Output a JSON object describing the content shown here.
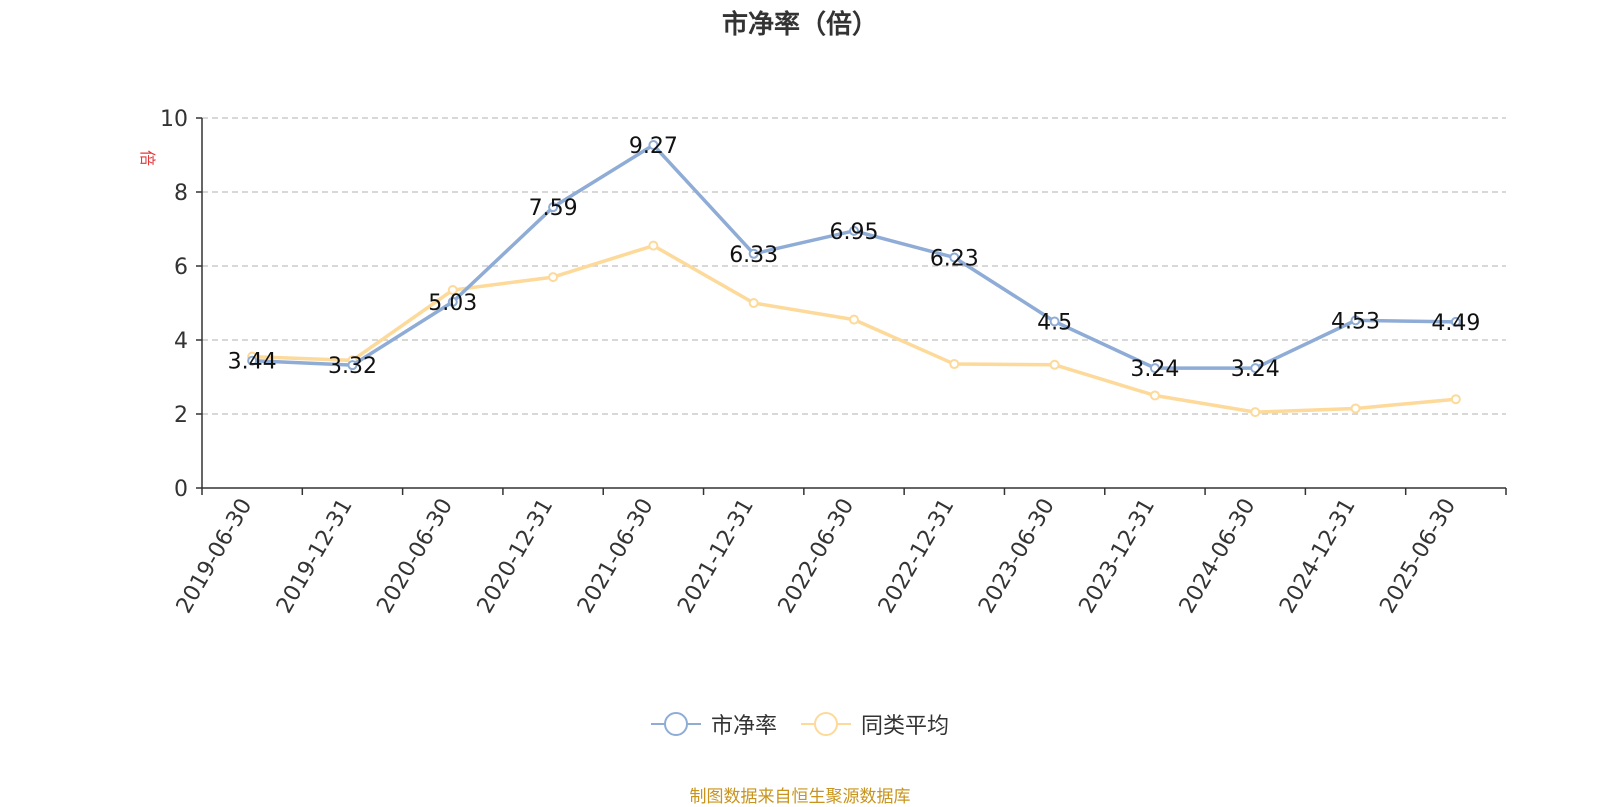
{
  "chart_data": {
    "type": "line",
    "title": "市净率（倍）",
    "ylabel": "倍",
    "ylim": [
      0,
      10
    ],
    "yticks": [
      0,
      2,
      4,
      6,
      8,
      10
    ],
    "grid": true,
    "legend_position": "bottom",
    "categories": [
      "2019-06-30",
      "2019-12-31",
      "2020-06-30",
      "2020-12-31",
      "2021-06-30",
      "2021-12-31",
      "2022-06-30",
      "2022-12-31",
      "2023-06-30",
      "2023-12-31",
      "2024-06-30",
      "2024-12-31",
      "2025-06-30"
    ],
    "series": [
      {
        "name": "市净率",
        "color": "#8eacd6",
        "values": [
          3.44,
          3.32,
          5.03,
          7.59,
          9.27,
          6.33,
          6.95,
          6.23,
          4.5,
          3.24,
          3.24,
          4.53,
          4.49
        ],
        "labels": [
          "3.44",
          "3.32",
          "5.03",
          "7.59",
          "9.27",
          "6.33",
          "6.95",
          "6.23",
          "4.5",
          "3.24",
          "3.24",
          "4.53",
          "4.49"
        ]
      },
      {
        "name": "同类平均",
        "color": "#fdd99a",
        "values": [
          3.55,
          3.45,
          5.35,
          5.7,
          6.55,
          5.0,
          4.55,
          3.35,
          3.33,
          2.5,
          2.05,
          2.15,
          2.4
        ]
      }
    ]
  },
  "footer": {
    "source_text": "制图数据来自恒生聚源数据库"
  }
}
